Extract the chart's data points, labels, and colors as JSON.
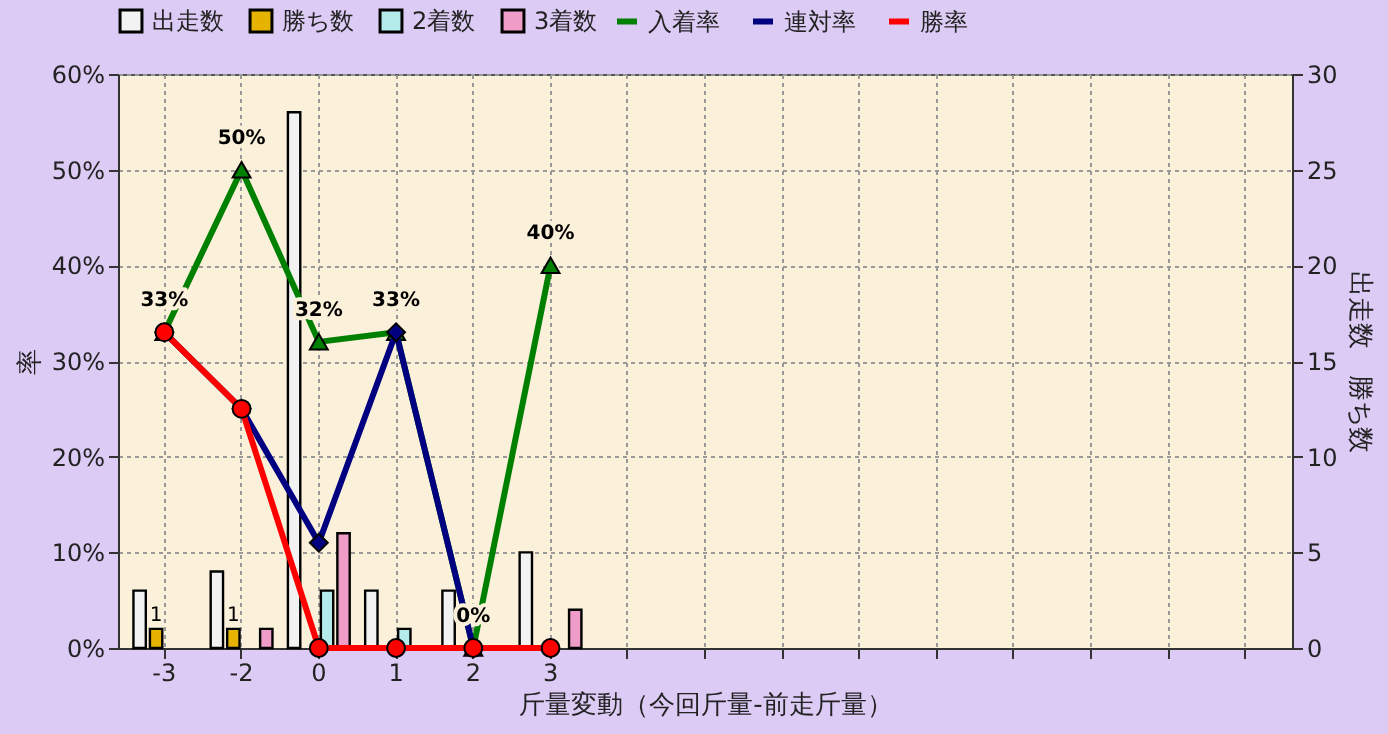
{
  "chart_data": {
    "type": "bar",
    "xlabel": "斤量変動（今回斤量-前走斤量）",
    "ylabel": "率",
    "y2label": "出走数　勝ち数",
    "categories": [
      "-3",
      "-2",
      "0",
      "1",
      "2",
      "3",
      null,
      null,
      null,
      null,
      null,
      null,
      null,
      null,
      null
    ],
    "series": [
      {
        "name": "出走数",
        "axis": "y2",
        "color": "#f2f2f2",
        "values": [
          3,
          4,
          28,
          3,
          3,
          5,
          null,
          null,
          null,
          null,
          null,
          null,
          null,
          null,
          null
        ]
      },
      {
        "name": "勝ち数",
        "axis": "y2",
        "color": "#e6b400",
        "values": [
          1,
          1,
          0,
          0,
          0,
          0,
          null,
          null,
          null,
          null,
          null,
          null,
          null,
          null,
          null
        ],
        "value_labels": [
          "1",
          "1",
          null,
          null,
          null,
          null,
          null,
          null,
          null,
          null,
          null,
          null,
          null,
          null,
          null
        ]
      },
      {
        "name": "2着数",
        "axis": "y2",
        "color": "#b4ecec",
        "values": [
          0,
          0,
          3,
          1,
          0,
          0,
          null,
          null,
          null,
          null,
          null,
          null,
          null,
          null,
          null
        ]
      },
      {
        "name": "3着数",
        "axis": "y2",
        "color": "#f09cc8",
        "values": [
          0,
          1,
          6,
          0,
          0,
          2,
          null,
          null,
          null,
          null,
          null,
          null,
          null,
          null,
          null
        ]
      },
      {
        "name": "入着率",
        "type": "line",
        "marker": "triangle",
        "color": "#008000",
        "values": [
          33,
          50,
          32,
          33,
          0,
          40,
          null,
          null,
          null,
          null,
          null,
          null,
          null,
          null,
          null
        ],
        "value_labels": [
          "33%",
          "50%",
          "32%",
          "33%",
          "0%",
          "40%",
          null,
          null,
          null,
          null,
          null,
          null,
          null,
          null,
          null
        ]
      },
      {
        "name": "連対率",
        "type": "line",
        "marker": "diamond",
        "color": "#000080",
        "values": [
          33,
          25,
          11,
          33,
          0,
          null,
          null,
          null,
          null,
          null,
          null,
          null,
          null,
          null,
          null
        ]
      },
      {
        "name": "勝率",
        "type": "line",
        "marker": "circle",
        "color": "#ff0000",
        "values": [
          33,
          25,
          0,
          0,
          0,
          0,
          null,
          null,
          null,
          null,
          null,
          null,
          null,
          null,
          null
        ]
      }
    ],
    "ylim": [
      0,
      60
    ],
    "yticks": [
      {
        "value": 0,
        "label": "0%"
      },
      {
        "value": 10,
        "label": "10%"
      },
      {
        "value": 20,
        "label": "20%"
      },
      {
        "value": 30,
        "label": "30%"
      },
      {
        "value": 40,
        "label": "40%"
      },
      {
        "value": 50,
        "label": "50%"
      },
      {
        "value": 60,
        "label": "60%"
      }
    ],
    "y2lim": [
      0,
      30
    ],
    "y2ticks": [
      0,
      5,
      10,
      15,
      20,
      25,
      30
    ],
    "grid": true,
    "legend": "top",
    "line_style": "solid"
  }
}
